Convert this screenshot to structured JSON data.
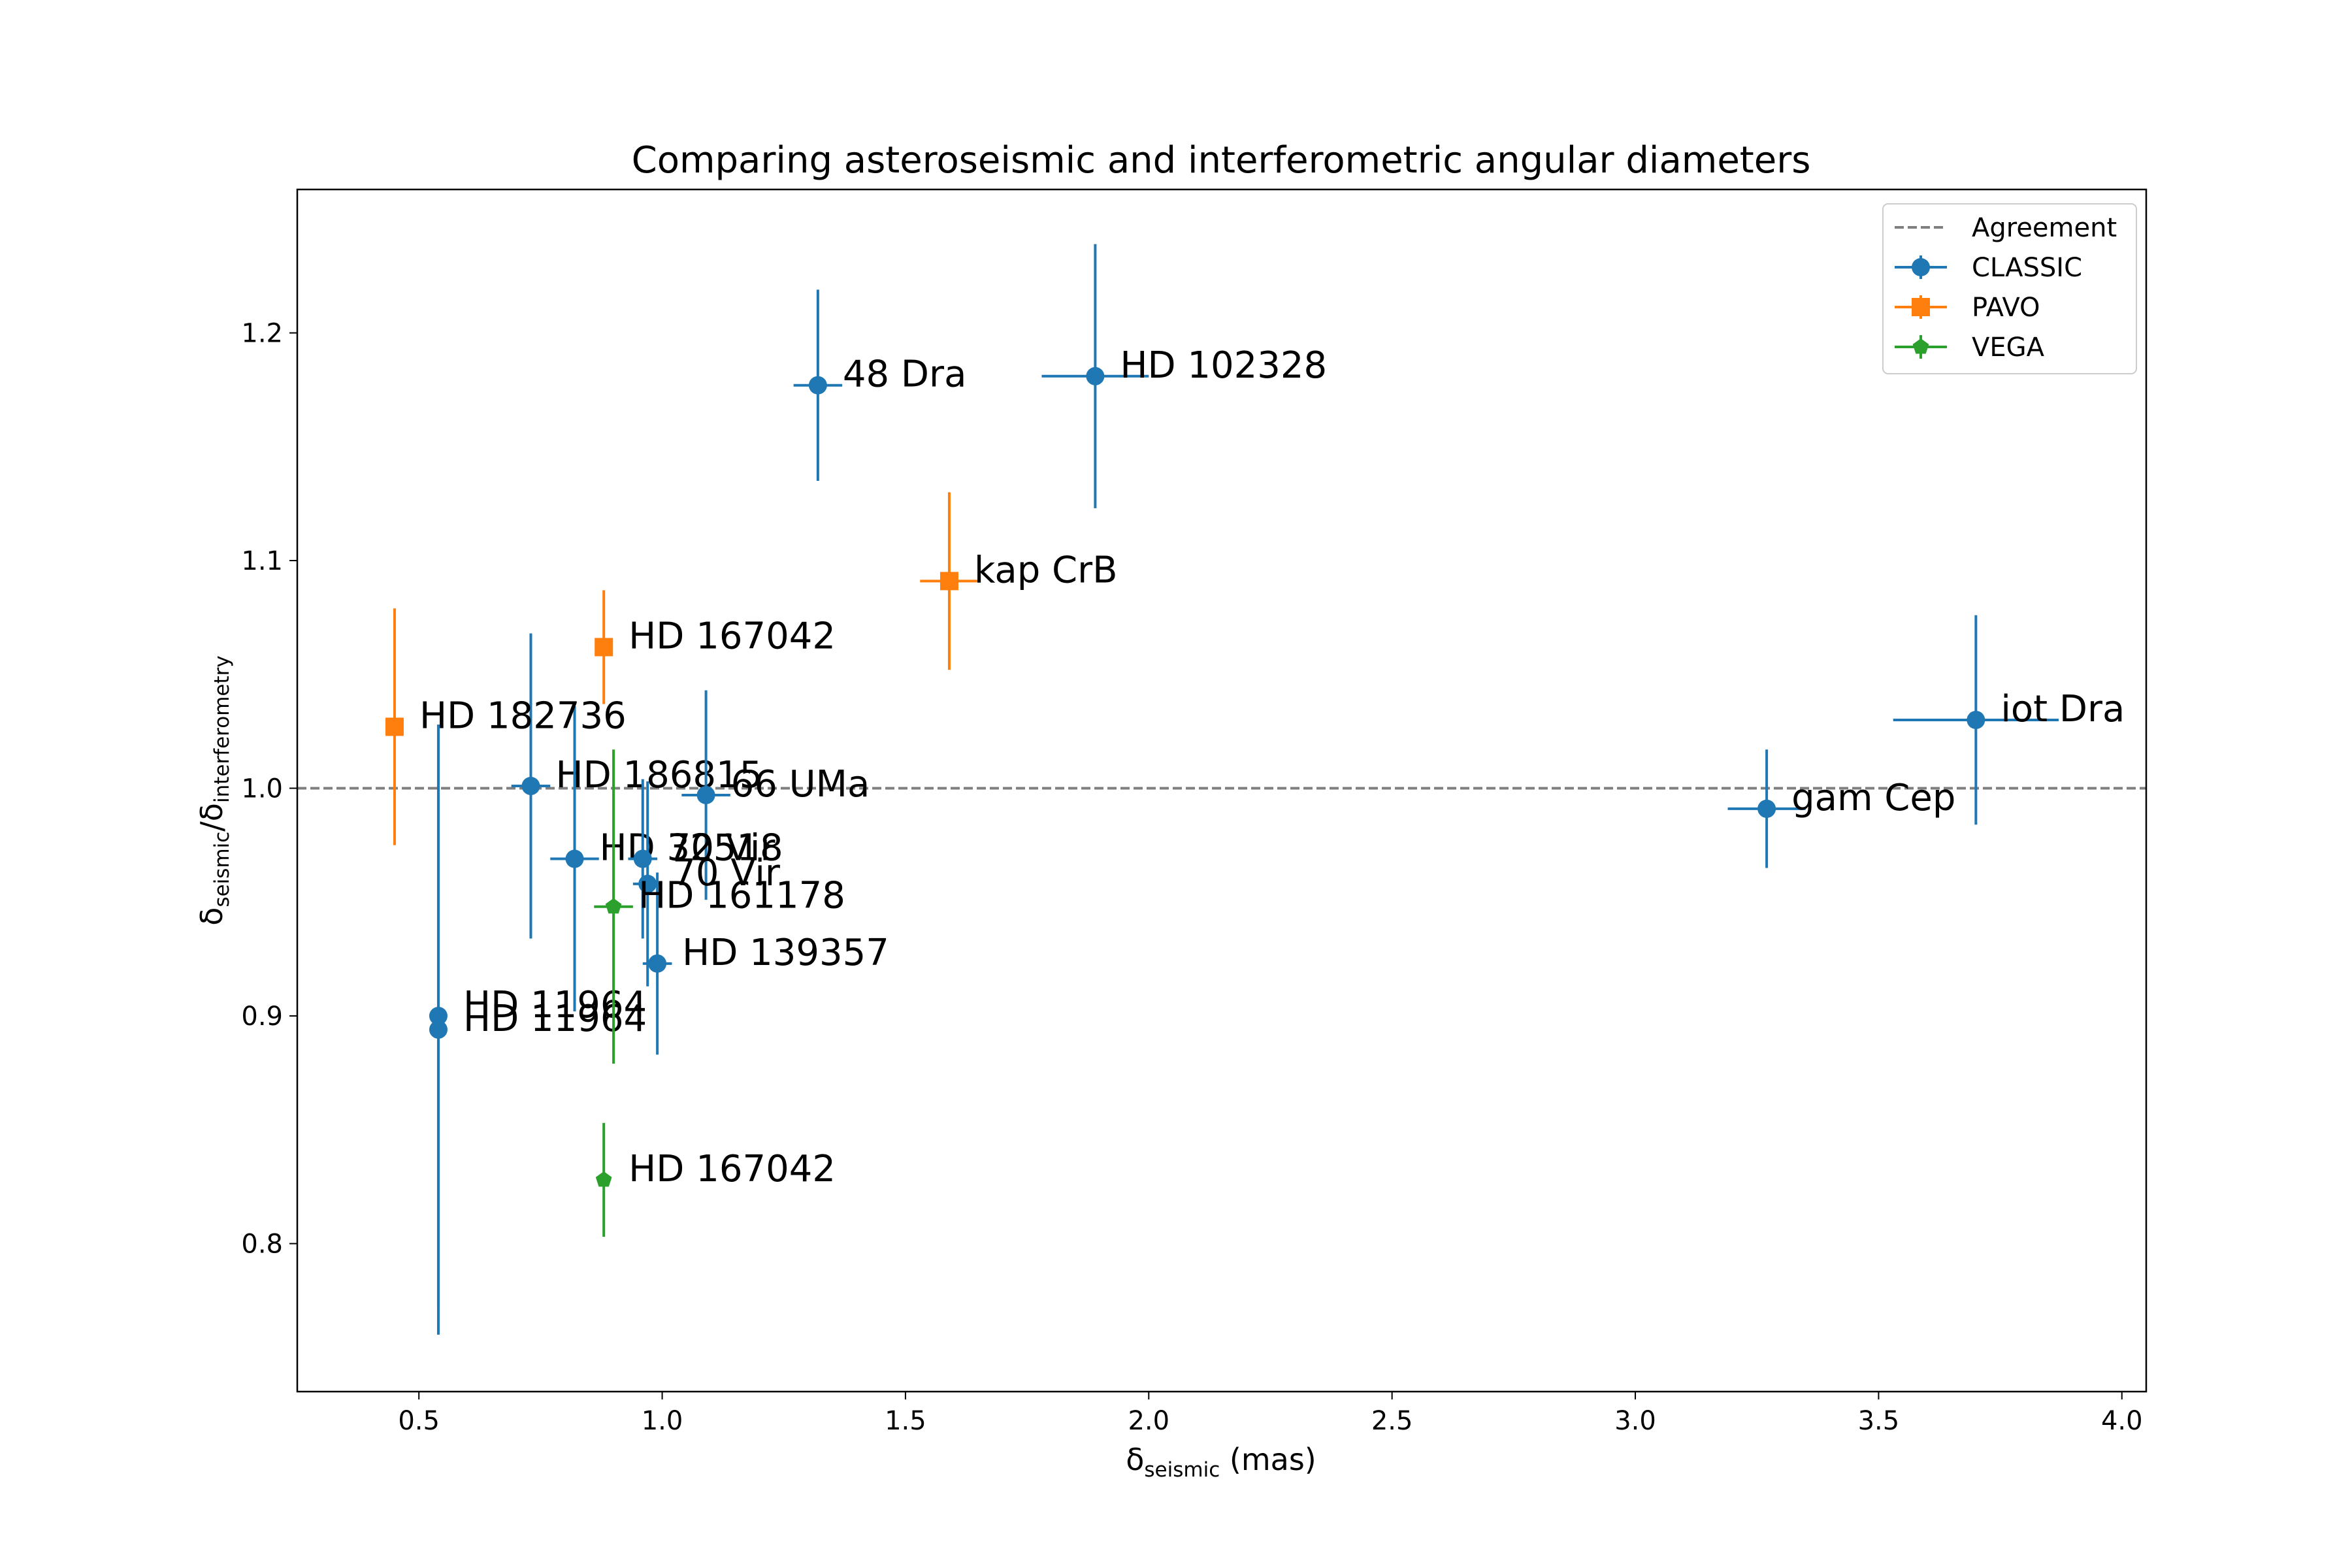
{
  "chart_data": {
    "type": "scatter",
    "title": "Comparing asteroseismic and interferometric angular diameters",
    "xlabel": {
      "base": "δ",
      "sub": "seismic",
      "suffix": " (mas)"
    },
    "ylabel": {
      "base1": "δ",
      "sub1": "seismic",
      "slash": "/",
      "base2": "δ",
      "sub2": "interferometry"
    },
    "xlim": [
      0.25,
      4.05
    ],
    "ylim": [
      0.735,
      1.263
    ],
    "xticks": [
      {
        "v": 0.5,
        "label": "0.5"
      },
      {
        "v": 1.0,
        "label": "1.0"
      },
      {
        "v": 1.5,
        "label": "1.5"
      },
      {
        "v": 2.0,
        "label": "2.0"
      },
      {
        "v": 2.5,
        "label": "2.5"
      },
      {
        "v": 3.0,
        "label": "3.0"
      },
      {
        "v": 3.5,
        "label": "3.5"
      },
      {
        "v": 4.0,
        "label": "4.0"
      }
    ],
    "yticks": [
      {
        "v": 0.8,
        "label": "0.8"
      },
      {
        "v": 0.9,
        "label": "0.9"
      },
      {
        "v": 1.0,
        "label": "1.0"
      },
      {
        "v": 1.1,
        "label": "1.1"
      },
      {
        "v": 1.2,
        "label": "1.2"
      }
    ],
    "reference_line": {
      "y": 1.0,
      "name": "Agreement",
      "color": "#7f7f7f",
      "style": "dashed"
    },
    "legend_position": "top-right",
    "series": [
      {
        "name": "CLASSIC",
        "color": "#1f77b4",
        "marker": "circle",
        "points": [
          {
            "label": "48 Dra",
            "x": 1.32,
            "y": 1.177,
            "xerr": 0.05,
            "yerr": 0.042
          },
          {
            "label": "HD 102328",
            "x": 1.89,
            "y": 1.181,
            "xerr": 0.11,
            "yerr": 0.058
          },
          {
            "label": "HD 186815",
            "x": 0.73,
            "y": 1.001,
            "xerr": 0.04,
            "yerr": 0.067
          },
          {
            "label": "66 UMa",
            "x": 1.09,
            "y": 0.997,
            "xerr": 0.05,
            "yerr": 0.046
          },
          {
            "label": "HD 32518",
            "x": 0.82,
            "y": 0.969,
            "xerr": 0.05,
            "yerr": 0.067
          },
          {
            "label": "70 Vir",
            "x": 0.96,
            "y": 0.969,
            "xerr": 0.03,
            "yerr": 0.035
          },
          {
            "label": "70 Vir",
            "x": 0.97,
            "y": 0.958,
            "xerr": 0.03,
            "yerr": 0.045
          },
          {
            "label": "HD 139357",
            "x": 0.99,
            "y": 0.923,
            "xerr": 0.03,
            "yerr": 0.04
          },
          {
            "label": "HD 11964",
            "x": 0.54,
            "y": 0.9,
            "xerr": 0.01,
            "yerr": 0.128
          },
          {
            "label": "HD 11964",
            "x": 0.54,
            "y": 0.894,
            "xerr": 0.01,
            "yerr": 0.134
          },
          {
            "label": "gam Cep",
            "x": 3.27,
            "y": 0.991,
            "xerr": 0.08,
            "yerr": 0.026
          },
          {
            "label": "iot Dra",
            "x": 3.7,
            "y": 1.03,
            "xerr": 0.17,
            "yerr": 0.046
          }
        ]
      },
      {
        "name": "PAVO",
        "color": "#ff7f0e",
        "marker": "square",
        "points": [
          {
            "label": "HD 182736",
            "x": 0.45,
            "y": 1.027,
            "xerr": 0.005,
            "yerr": 0.052
          },
          {
            "label": "HD 167042",
            "x": 0.88,
            "y": 1.062,
            "xerr": 0.005,
            "yerr": 0.025
          },
          {
            "label": "kap CrB",
            "x": 1.59,
            "y": 1.091,
            "xerr": 0.06,
            "yerr": 0.039
          }
        ]
      },
      {
        "name": "VEGA",
        "color": "#2ca02c",
        "marker": "pentagon",
        "points": [
          {
            "label": "HD 161178",
            "x": 0.9,
            "y": 0.948,
            "xerr": 0.04,
            "yerr": 0.069
          },
          {
            "label": "HD 167042",
            "x": 0.88,
            "y": 0.828,
            "xerr": 0.005,
            "yerr": 0.025
          }
        ]
      }
    ]
  }
}
